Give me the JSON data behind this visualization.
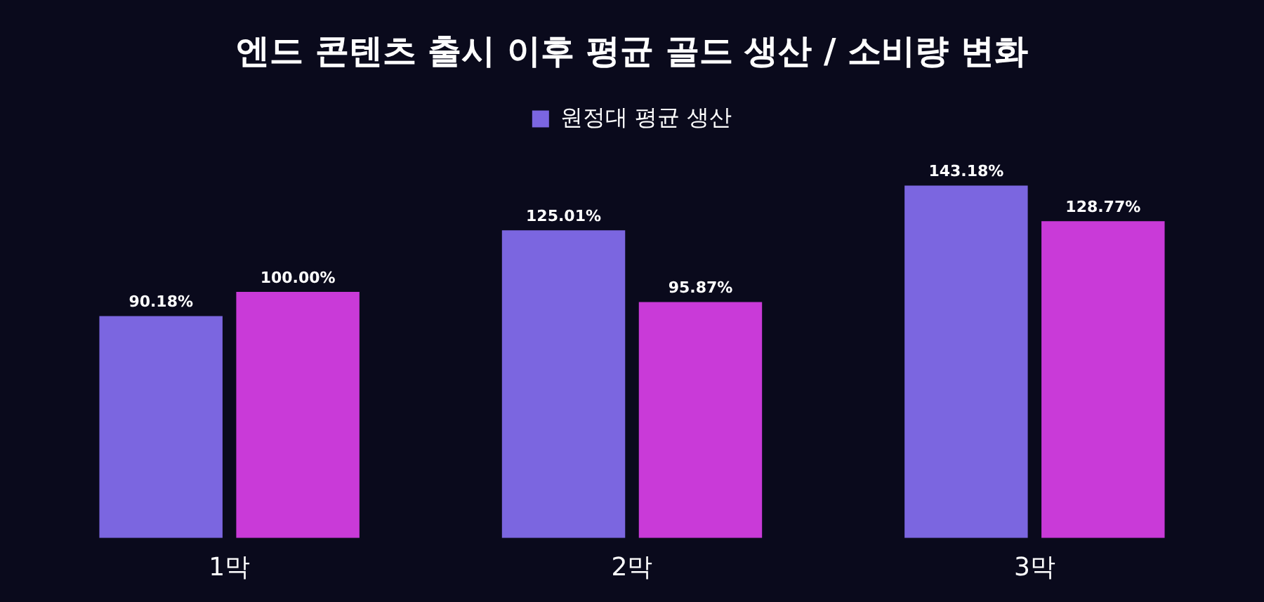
{
  "chart_data": {
    "type": "bar",
    "title": "엔드 콘텐츠 출시 이후 평균 골드 생산 / 소비량 변화",
    "categories": [
      "1막",
      "2막",
      "3막"
    ],
    "series": [
      {
        "name": "원정대 평균 생산",
        "color": "#7b66e0",
        "values": [
          90.18,
          125.01,
          143.18
        ],
        "value_labels": [
          "90.18%",
          "125.01%",
          "143.18%"
        ]
      },
      {
        "color": "#c93ad8",
        "values": [
          100.0,
          95.87,
          128.77
        ],
        "value_labels": [
          "100.00%",
          "95.87%",
          "128.77%"
        ]
      }
    ],
    "tick_labels": "x",
    "grid": false,
    "legend": "top"
  }
}
